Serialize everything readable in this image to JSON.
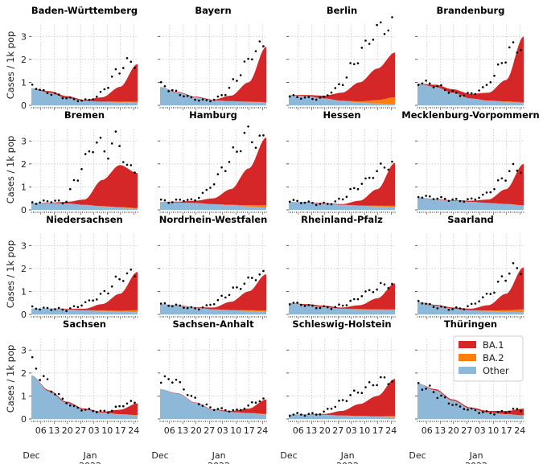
{
  "chart_data": {
    "type": "area",
    "ylabel": "Cases / 1k pop",
    "ylim": [
      0,
      3.5
    ],
    "yticks": [
      0,
      1,
      2,
      3
    ],
    "xlim_days": [
      0,
      56
    ],
    "x_start_date": "2021-12-01",
    "xticks": [
      {
        "day": 5,
        "label": "06"
      },
      {
        "day": 12,
        "label": "13"
      },
      {
        "day": 19,
        "label": "20"
      },
      {
        "day": 26,
        "label": "27"
      },
      {
        "day": 33,
        "label": "03"
      },
      {
        "day": 40,
        "label": "10"
      },
      {
        "day": 47,
        "label": "17"
      },
      {
        "day": 54,
        "label": "24"
      }
    ],
    "month_labels": [
      {
        "day": 0,
        "label": "Dec"
      },
      {
        "day": 31,
        "label": "Jan"
      }
    ],
    "year_label": {
      "day": 31,
      "label": "2022"
    },
    "legend": [
      {
        "name": "BA.1",
        "color": "#d62728"
      },
      {
        "name": "BA.2",
        "color": "#ff7f0e"
      },
      {
        "name": "Other",
        "color": "#8db8d8"
      }
    ],
    "legend_position": "inside last panel, top-right",
    "colors": {
      "ba1": "#d62728",
      "ba2": "#ff7f0e",
      "other": "#8db8d8",
      "dots": "#000000"
    },
    "panels": [
      {
        "title": "Baden-Württemberg",
        "other": [
          0.75,
          0.55,
          0.32,
          0.2,
          0.16,
          0.14,
          0.12
        ],
        "total": [
          0.75,
          0.62,
          0.4,
          0.24,
          0.35,
          0.8,
          1.8
        ],
        "ba2": [
          0,
          0,
          0,
          0,
          0,
          0.02,
          0.04
        ],
        "dots": [
          0.9,
          0.6,
          0.5,
          0.35,
          0.25,
          0.2,
          0.35,
          0.8,
          1.5,
          1.85
        ]
      },
      {
        "title": "Bayern",
        "other": [
          0.8,
          0.55,
          0.35,
          0.22,
          0.18,
          0.15,
          0.12
        ],
        "total": [
          0.8,
          0.58,
          0.38,
          0.25,
          0.42,
          1.0,
          2.55
        ],
        "ba2": [
          0,
          0,
          0,
          0,
          0,
          0.01,
          0.02
        ],
        "dots": [
          0.9,
          0.65,
          0.45,
          0.3,
          0.2,
          0.25,
          0.5,
          1.1,
          1.8,
          2.5
        ]
      },
      {
        "title": "Berlin",
        "other": [
          0.45,
          0.4,
          0.3,
          0.2,
          0.12,
          0.08,
          0.05
        ],
        "total": [
          0.45,
          0.45,
          0.42,
          0.55,
          1.0,
          1.6,
          2.3
        ],
        "ba2": [
          0,
          0,
          0,
          0,
          0.05,
          0.15,
          0.3
        ],
        "dots": [
          0.4,
          0.35,
          0.3,
          0.3,
          0.6,
          1.0,
          1.8,
          2.5,
          3.2,
          3.45
        ]
      },
      {
        "title": "Brandenburg",
        "other": [
          0.95,
          0.8,
          0.55,
          0.3,
          0.2,
          0.15,
          0.1
        ],
        "total": [
          0.95,
          0.9,
          0.7,
          0.5,
          0.55,
          1.1,
          3.0
        ],
        "ba2": [
          0,
          0,
          0,
          0,
          0.01,
          0.02,
          0.04
        ],
        "dots": [
          1.0,
          0.95,
          0.8,
          0.6,
          0.45,
          0.5,
          0.7,
          1.2,
          2.0,
          2.55
        ]
      },
      {
        "title": "Bremen",
        "other": [
          0.3,
          0.3,
          0.28,
          0.22,
          0.15,
          0.1,
          0.05
        ],
        "total": [
          0.3,
          0.32,
          0.35,
          0.45,
          1.3,
          1.95,
          1.6
        ],
        "ba2": [
          0,
          0,
          0,
          0,
          0.01,
          0.02,
          0.03
        ],
        "dots": [
          0.3,
          0.35,
          0.4,
          0.3,
          1.2,
          2.2,
          3.0,
          2.5,
          3.1,
          1.8
        ]
      },
      {
        "title": "Hamburg",
        "other": [
          0.35,
          0.32,
          0.3,
          0.25,
          0.2,
          0.15,
          0.1
        ],
        "total": [
          0.35,
          0.36,
          0.4,
          0.5,
          0.9,
          1.8,
          3.15
        ],
        "ba2": [
          0,
          0,
          0,
          0,
          0.02,
          0.05,
          0.1
        ],
        "dots": [
          0.4,
          0.35,
          0.45,
          0.4,
          0.7,
          1.2,
          1.9,
          2.5,
          3.3,
          3.0
        ]
      },
      {
        "title": "Hessen",
        "other": [
          0.35,
          0.32,
          0.28,
          0.22,
          0.18,
          0.15,
          0.12
        ],
        "total": [
          0.35,
          0.34,
          0.3,
          0.25,
          0.4,
          0.9,
          2.05
        ],
        "ba2": [
          0,
          0,
          0,
          0,
          0.01,
          0.03,
          0.06
        ],
        "dots": [
          0.4,
          0.35,
          0.3,
          0.25,
          0.3,
          0.5,
          0.9,
          1.2,
          1.6,
          1.95
        ]
      },
      {
        "title": "Mecklenburg-Vorpommern",
        "other": [
          0.55,
          0.45,
          0.4,
          0.35,
          0.3,
          0.25,
          0.18
        ],
        "total": [
          0.55,
          0.47,
          0.42,
          0.4,
          0.45,
          0.9,
          2.0
        ],
        "ba2": [
          0,
          0,
          0,
          0,
          0,
          0.01,
          0.02
        ],
        "dots": [
          0.6,
          0.55,
          0.5,
          0.45,
          0.4,
          0.45,
          0.6,
          0.9,
          1.4,
          1.8
        ]
      },
      {
        "title": "Niedersachsen",
        "other": [
          0.25,
          0.25,
          0.22,
          0.18,
          0.15,
          0.12,
          0.1
        ],
        "total": [
          0.25,
          0.26,
          0.25,
          0.25,
          0.45,
          0.9,
          1.85
        ],
        "ba2": [
          0,
          0,
          0,
          0,
          0.02,
          0.04,
          0.08
        ],
        "dots": [
          0.3,
          0.25,
          0.25,
          0.2,
          0.3,
          0.5,
          0.7,
          1.0,
          1.5,
          1.75
        ]
      },
      {
        "title": "Nordrhein-Westfalen",
        "other": [
          0.45,
          0.38,
          0.3,
          0.22,
          0.18,
          0.15,
          0.12
        ],
        "total": [
          0.45,
          0.4,
          0.32,
          0.3,
          0.55,
          1.0,
          1.75
        ],
        "ba2": [
          0,
          0,
          0,
          0,
          0.01,
          0.03,
          0.05
        ],
        "dots": [
          0.45,
          0.4,
          0.35,
          0.25,
          0.3,
          0.5,
          0.8,
          1.1,
          1.4,
          1.7
        ]
      },
      {
        "title": "Rheinland-Pfalz",
        "other": [
          0.5,
          0.4,
          0.32,
          0.25,
          0.22,
          0.2,
          0.18
        ],
        "total": [
          0.5,
          0.45,
          0.38,
          0.3,
          0.4,
          0.7,
          1.35
        ],
        "ba2": [
          0,
          0,
          0,
          0,
          0.01,
          0.02,
          0.04
        ],
        "dots": [
          0.5,
          0.45,
          0.35,
          0.3,
          0.3,
          0.4,
          0.6,
          0.9,
          1.1,
          1.3
        ]
      },
      {
        "title": "Saarland",
        "other": [
          0.55,
          0.38,
          0.25,
          0.18,
          0.15,
          0.12,
          0.1
        ],
        "total": [
          0.55,
          0.42,
          0.3,
          0.25,
          0.4,
          0.9,
          2.05
        ],
        "ba2": [
          0,
          0,
          0,
          0,
          0.02,
          0.06,
          0.12
        ],
        "dots": [
          0.6,
          0.4,
          0.3,
          0.25,
          0.25,
          0.4,
          0.7,
          1.0,
          1.6,
          2.0
        ]
      },
      {
        "title": "Sachsen",
        "other": [
          1.9,
          1.2,
          0.7,
          0.4,
          0.28,
          0.2,
          0.15
        ],
        "total": [
          1.9,
          1.25,
          0.75,
          0.45,
          0.32,
          0.4,
          0.68
        ],
        "ba2": [
          0,
          0,
          0,
          0,
          0,
          0.01,
          0.02
        ],
        "dots": [
          2.4,
          1.8,
          1.2,
          0.8,
          0.5,
          0.4,
          0.35,
          0.3,
          0.5,
          0.7
        ]
      },
      {
        "title": "Sachsen-Anhalt",
        "other": [
          1.3,
          1.1,
          0.7,
          0.4,
          0.3,
          0.25,
          0.2
        ],
        "total": [
          1.3,
          1.12,
          0.72,
          0.42,
          0.35,
          0.45,
          0.85
        ],
        "ba2": [
          0,
          0,
          0,
          0,
          0,
          0.01,
          0.02
        ],
        "dots": [
          1.6,
          1.8,
          1.4,
          0.9,
          0.6,
          0.45,
          0.4,
          0.35,
          0.5,
          0.8
        ]
      },
      {
        "title": "Schleswig-Holstein",
        "other": [
          0.2,
          0.2,
          0.18,
          0.15,
          0.12,
          0.1,
          0.08
        ],
        "total": [
          0.2,
          0.21,
          0.22,
          0.35,
          0.65,
          1.0,
          1.75
        ],
        "ba2": [
          0,
          0,
          0,
          0,
          0.01,
          0.02,
          0.05
        ],
        "dots": [
          0.2,
          0.2,
          0.2,
          0.25,
          0.5,
          0.8,
          1.1,
          1.3,
          1.6,
          1.7
        ]
      },
      {
        "title": "Thüringen",
        "other": [
          1.55,
          1.25,
          0.8,
          0.45,
          0.28,
          0.2,
          0.15
        ],
        "total": [
          1.55,
          1.3,
          0.85,
          0.5,
          0.35,
          0.35,
          0.45
        ],
        "ba2": [
          0,
          0,
          0,
          0,
          0,
          0.01,
          0.01
        ],
        "dots": [
          1.5,
          1.3,
          1.0,
          0.7,
          0.5,
          0.4,
          0.3,
          0.25,
          0.3,
          0.4
        ]
      }
    ]
  }
}
